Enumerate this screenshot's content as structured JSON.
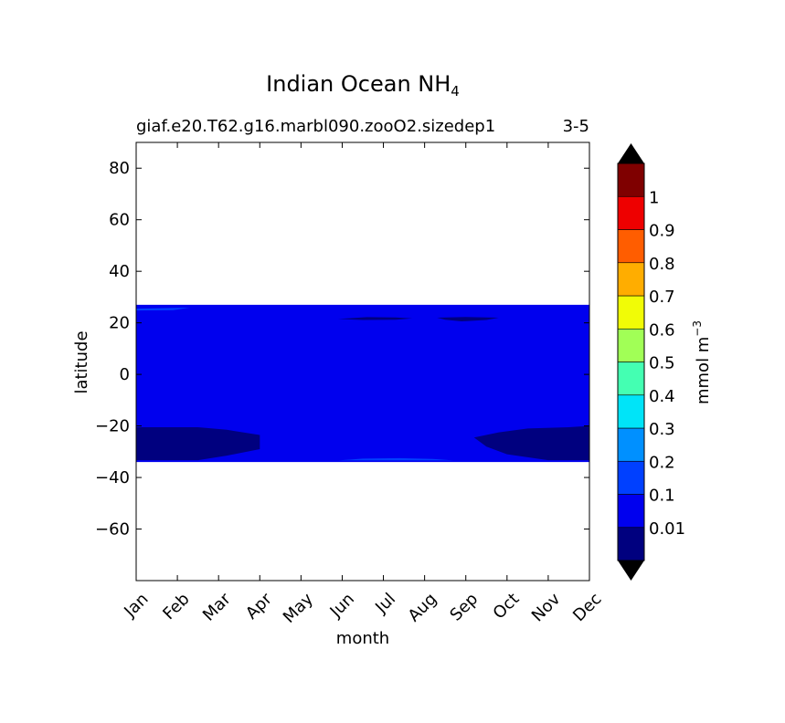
{
  "chart_data": {
    "type": "heatmap",
    "title": "Indian Ocean NH",
    "title_subscript": "4",
    "subtitle_left": "giaf.e20.T62.g16.marbl090.zooO2.sizedep1",
    "subtitle_right": "3-5",
    "xlabel": "month",
    "ylabel": "latitude",
    "x_ticks": [
      "Jan",
      "Feb",
      "Mar",
      "Apr",
      "May",
      "Jun",
      "Jul",
      "Aug",
      "Sep",
      "Oct",
      "Nov",
      "Dec"
    ],
    "ylim": [
      -80,
      90
    ],
    "y_ticks": [
      80,
      60,
      40,
      20,
      0,
      -20,
      -40,
      -60
    ],
    "y_tick_labels": [
      "80",
      "60",
      "40",
      "20",
      "0",
      "−20",
      "−40",
      "−60"
    ],
    "data_lat_range": [
      -34,
      27
    ],
    "fill_color": "#0000ee",
    "regions": [
      {
        "name": "low-south-west",
        "color": "#00007f",
        "points": [
          [
            0,
            -20.5
          ],
          [
            1.5,
            -20.5
          ],
          [
            2.2,
            -21.5
          ],
          [
            3,
            -23.5
          ],
          [
            3,
            -29
          ],
          [
            2.2,
            -31.5
          ],
          [
            1.5,
            -33.3
          ],
          [
            0,
            -33.3
          ]
        ]
      },
      {
        "name": "low-south-east",
        "color": "#00007f",
        "points": [
          [
            8.2,
            -24.5
          ],
          [
            8.8,
            -22.5
          ],
          [
            9.5,
            -21
          ],
          [
            10.5,
            -20.5
          ],
          [
            11,
            -20
          ],
          [
            11,
            -33.3
          ],
          [
            10,
            -33.3
          ],
          [
            9,
            -31
          ],
          [
            8.5,
            -28
          ]
        ]
      },
      {
        "name": "low-north-jul",
        "color": "#00007f",
        "points": [
          [
            4.9,
            21.5
          ],
          [
            5.6,
            22.2
          ],
          [
            6.3,
            22.1
          ],
          [
            6.7,
            21.7
          ],
          [
            6.3,
            21.2
          ],
          [
            5.5,
            21.1
          ]
        ]
      },
      {
        "name": "low-north-sep",
        "color": "#00007f",
        "points": [
          [
            7.3,
            22.0
          ],
          [
            8.0,
            22.3
          ],
          [
            8.8,
            22.0
          ],
          [
            8.5,
            21.1
          ],
          [
            7.9,
            20.6
          ],
          [
            7.5,
            21.2
          ]
        ]
      },
      {
        "name": "high-south-jun-aug",
        "color": "#0040ff",
        "points": [
          [
            4.9,
            -33.4
          ],
          [
            5.5,
            -32.7
          ],
          [
            6.4,
            -32.5
          ],
          [
            7.2,
            -32.8
          ],
          [
            7.7,
            -33.4
          ]
        ]
      },
      {
        "name": "high-north-jan",
        "color": "#0040ff",
        "points": [
          [
            0,
            25.5
          ],
          [
            1.3,
            25.9
          ],
          [
            0.9,
            24.9
          ],
          [
            0,
            24.8
          ]
        ]
      }
    ],
    "colorbar": {
      "label": "mmol m",
      "label_superscript": "−3",
      "tick_labels": [
        "0.01",
        "0.1",
        "0.2",
        "0.3",
        "0.4",
        "0.5",
        "0.6",
        "0.7",
        "0.8",
        "0.9",
        "1"
      ],
      "colors": [
        "#00007f",
        "#0000ee",
        "#0040ff",
        "#0090ff",
        "#00e4f8",
        "#44ffb2",
        "#a1ff56",
        "#f1fc06",
        "#ffad00",
        "#ff5d00",
        "#ee0000",
        "#7f0000"
      ],
      "extend_min_color": "#000000",
      "extend_max_color": "#000000"
    }
  }
}
